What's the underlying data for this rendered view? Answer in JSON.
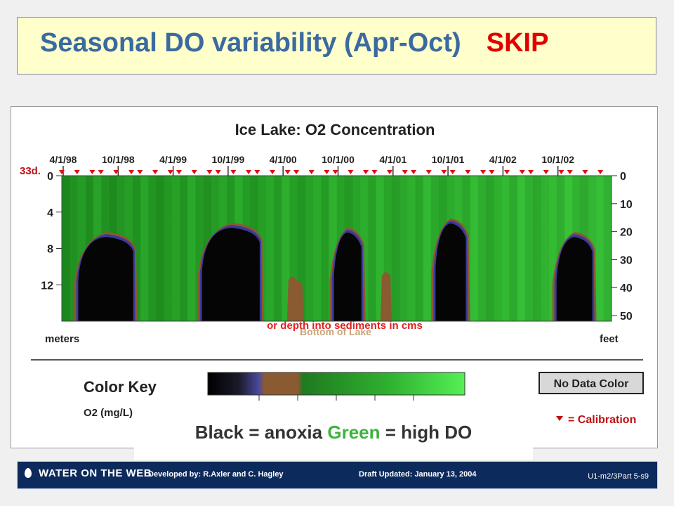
{
  "slide": {
    "title": "Seasonal DO variability (Apr-Oct)",
    "title_tag": "SKIP",
    "caption_black": "Black = anoxia",
    "caption_green": "Green",
    "caption_rest": "= high DO"
  },
  "footer": {
    "logo": "WATER ON THE WEB",
    "developed": "Developed by:  R.Axler and C. Hagley",
    "draft": "Draft Updated:   January 13, 2004",
    "code": "U1-m2/3Part  5-s9"
  },
  "chart_data": {
    "type": "heatmap",
    "title": "Ice Lake:  O2 Concentration",
    "date_ticks": [
      "4/1/98",
      "10/1/98",
      "4/1/99",
      "10/1/99",
      "4/1/00",
      "10/1/00",
      "4/1/01",
      "10/1/01",
      "4/1/02",
      "10/1/02"
    ],
    "left_axis": {
      "unit": "meters",
      "ticks": [
        0,
        4,
        8,
        12
      ],
      "range": [
        0,
        16
      ]
    },
    "right_axis": {
      "unit": "feet",
      "ticks": [
        0,
        10,
        20,
        30,
        40,
        50
      ],
      "range": [
        0,
        52
      ]
    },
    "corner_label": "33d.",
    "bottom_annotation": "or depth into sediments in cms",
    "bottom_annotation_underlay": "Bottom of Lake",
    "color_key": {
      "title": "Color Key",
      "unit_label": "O2 (mg/L)",
      "colors": [
        "#000000",
        "#2a2a60",
        "#4a4aa0",
        "#8a5a30",
        "#1f7a1f",
        "#2fa02f",
        "#3dd03d",
        "#55f055"
      ],
      "no_data_label": "No Data Color",
      "calibration_label": "= Calibration"
    },
    "anoxic_periods": [
      {
        "year": "1998",
        "start": 0.03,
        "end": 0.13,
        "top_depth_m": 6.5
      },
      {
        "year": "1999",
        "start": 0.255,
        "end": 0.36,
        "top_depth_m": 5.5
      },
      {
        "year": "2000",
        "start": 0.495,
        "end": 0.545,
        "top_depth_m": 6.0
      },
      {
        "year": "2001",
        "start": 0.68,
        "end": 0.735,
        "top_depth_m": 5.0
      },
      {
        "year": "2002",
        "start": 0.9,
        "end": 0.965,
        "top_depth_m": 6.5
      }
    ]
  }
}
